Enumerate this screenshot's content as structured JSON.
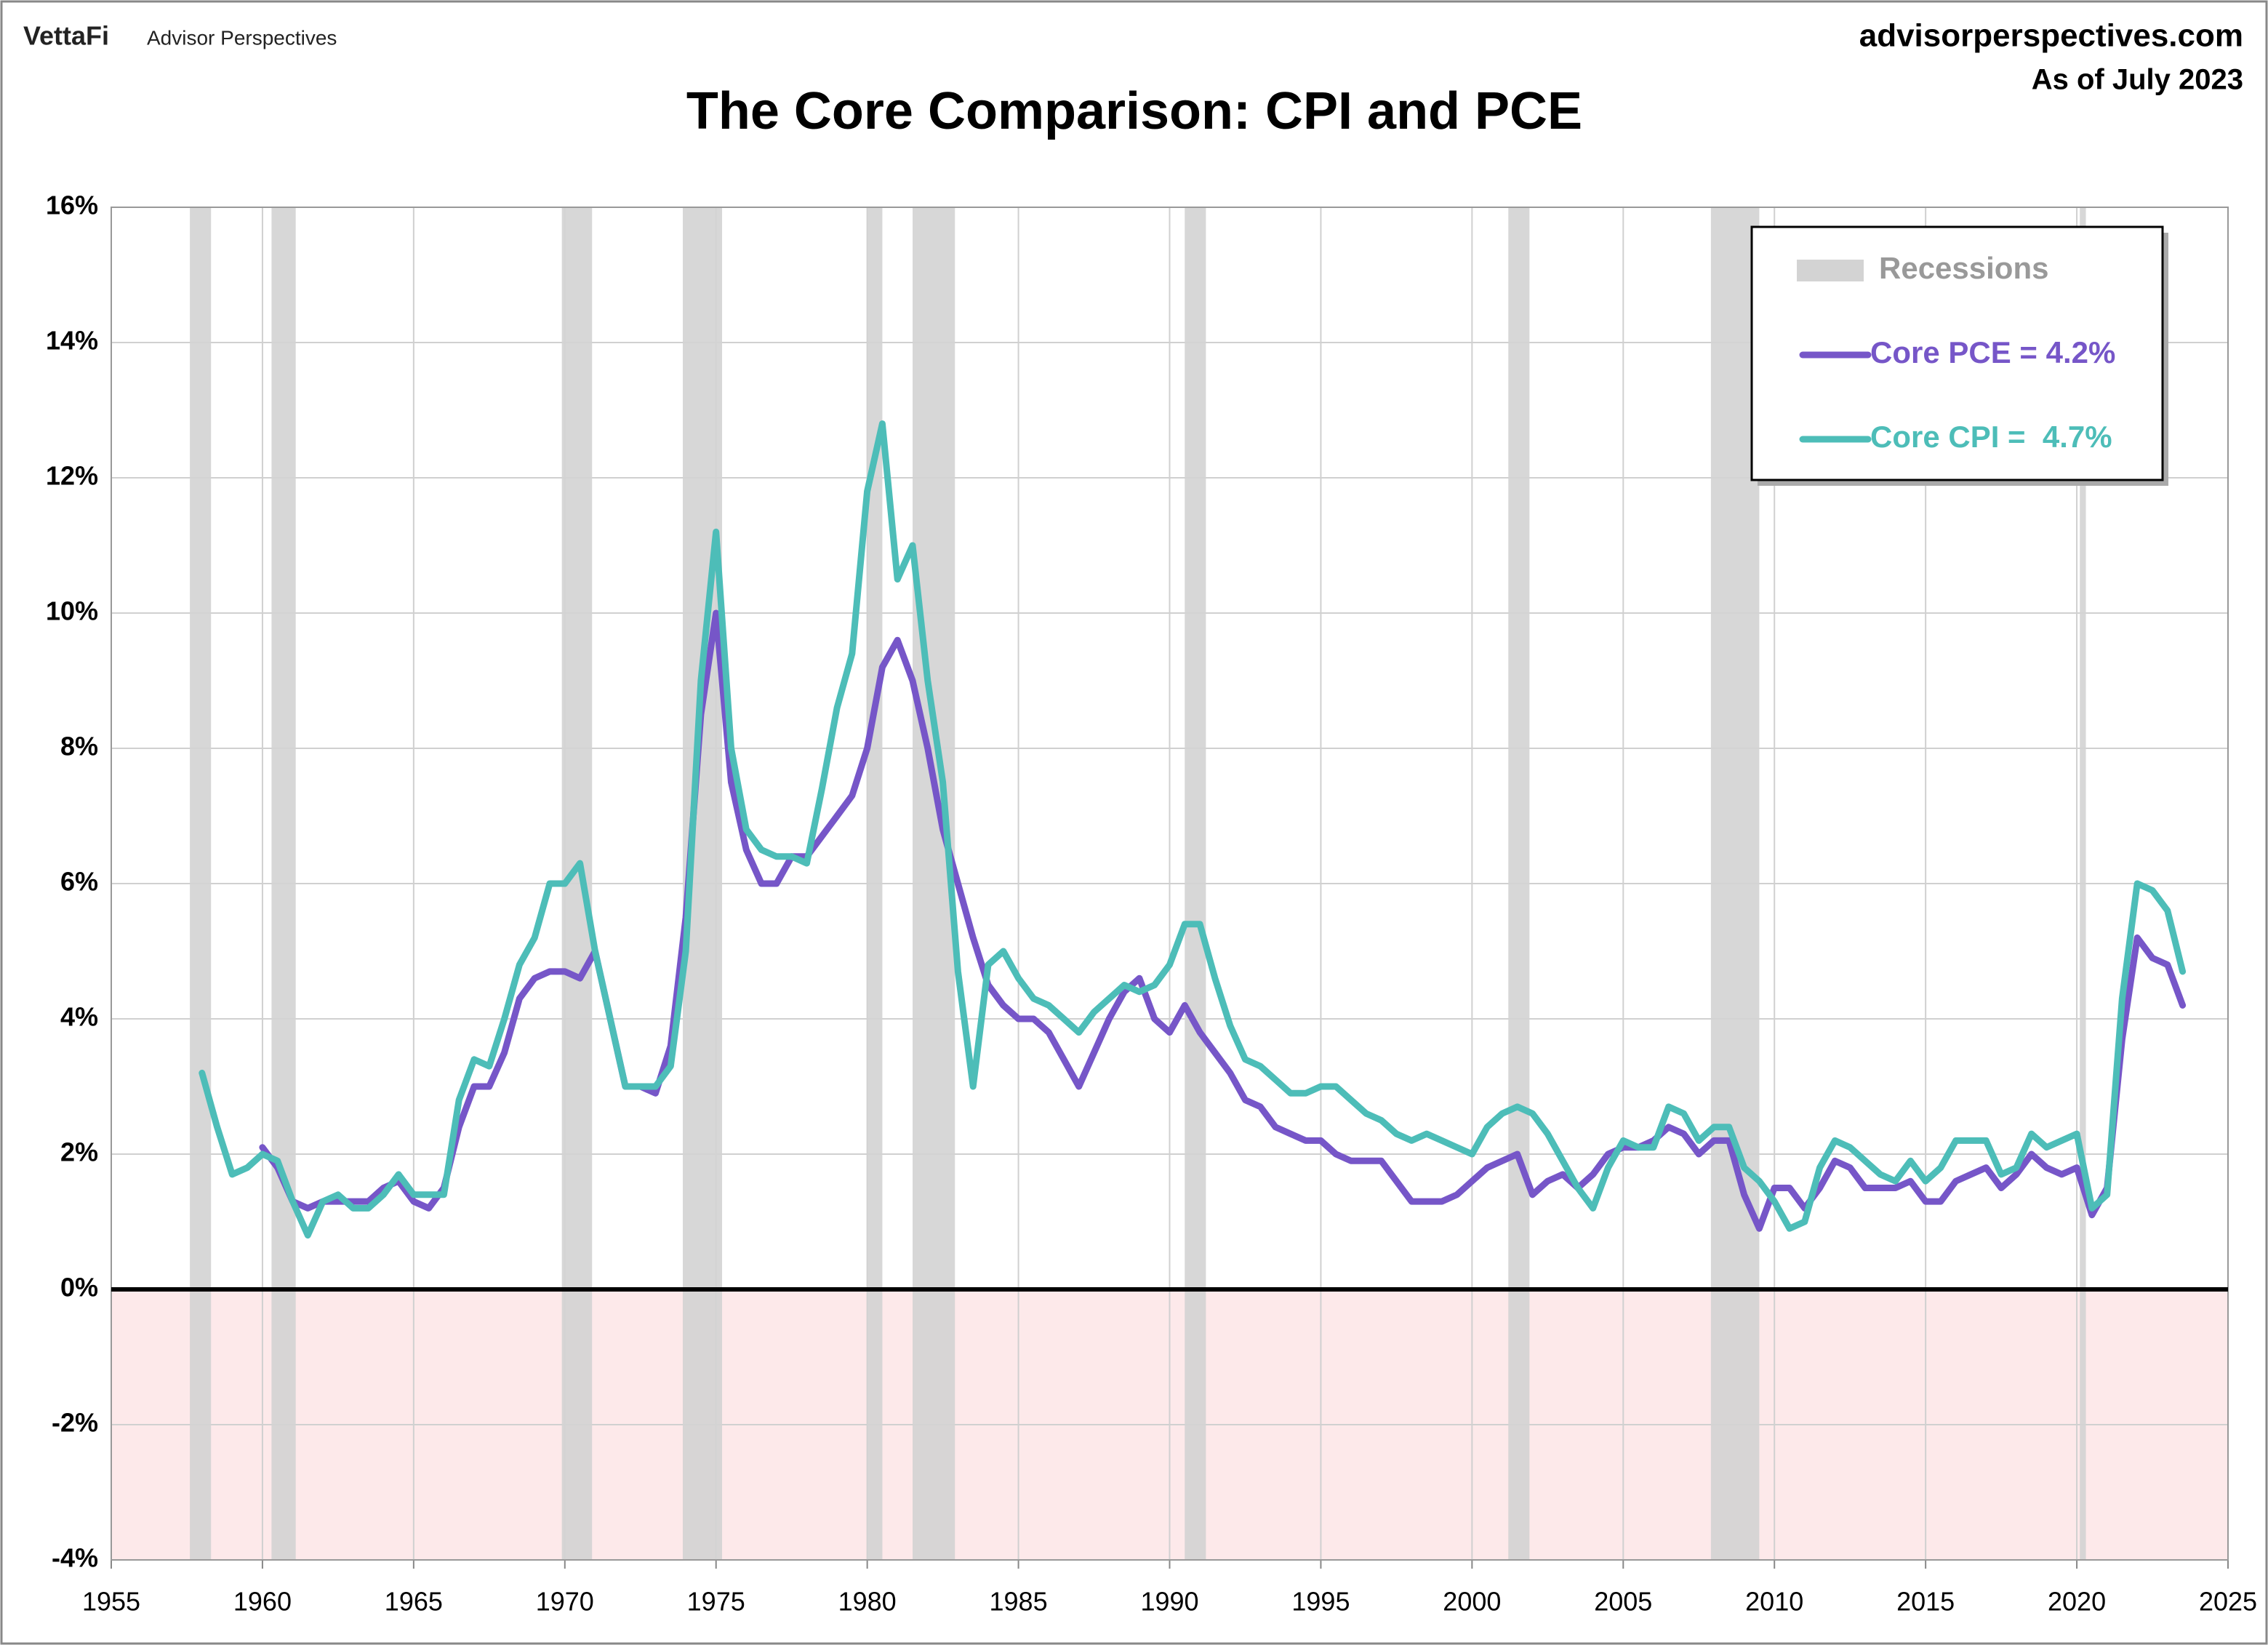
{
  "chart_data": {
    "type": "line",
    "brand": "VettaFi",
    "brand_sub": "Advisor Perspectives",
    "website": "advisorperspectives.com",
    "as_of": "As of July 2023",
    "title": "The Core Comparison: CPI and PCE",
    "xlim": [
      1955,
      2025
    ],
    "xticks": [
      1955,
      1960,
      1965,
      1970,
      1975,
      1980,
      1985,
      1990,
      1995,
      2000,
      2005,
      2010,
      2015,
      2020,
      2025
    ],
    "ylim": [
      -4,
      16
    ],
    "yticks": [
      {
        "value": -4,
        "label": "-4%"
      },
      {
        "value": -2,
        "label": "-2%"
      },
      {
        "value": 0,
        "label": "0%"
      },
      {
        "value": 2,
        "label": "2%"
      },
      {
        "value": 4,
        "label": "4%"
      },
      {
        "value": 6,
        "label": "6%"
      },
      {
        "value": 8,
        "label": "8%"
      },
      {
        "value": 10,
        "label": "10%"
      },
      {
        "value": 12,
        "label": "12%"
      },
      {
        "value": 14,
        "label": "14%"
      },
      {
        "value": 16,
        "label": "16%"
      }
    ],
    "grid": true,
    "negative_shade_color": "#fde9ea",
    "legend": "upper right",
    "recessions": {
      "name": "Recessions",
      "color": "#d3d3d3",
      "periods": [
        [
          1957.6,
          1958.3
        ],
        [
          1960.3,
          1961.1
        ],
        [
          1969.9,
          1970.9
        ],
        [
          1973.9,
          1975.2
        ],
        [
          1980.0,
          1980.5
        ],
        [
          1981.5,
          1982.9
        ],
        [
          1990.5,
          1991.2
        ],
        [
          2001.2,
          2001.9
        ],
        [
          2007.9,
          2009.5
        ],
        [
          2020.1,
          2020.3
        ]
      ]
    },
    "x": [
      1958.0,
      1958.5,
      1959.0,
      1959.5,
      1960.0,
      1960.5,
      1961.0,
      1961.5,
      1962.0,
      1962.5,
      1963.0,
      1963.5,
      1964.0,
      1964.5,
      1965.0,
      1965.5,
      1966.0,
      1966.5,
      1967.0,
      1967.5,
      1968.0,
      1968.5,
      1969.0,
      1969.5,
      1970.0,
      1970.5,
      1971.0,
      1971.5,
      1972.0,
      1972.5,
      1973.0,
      1973.5,
      1974.0,
      1974.5,
      1975.0,
      1975.5,
      1976.0,
      1976.5,
      1977.0,
      1977.5,
      1978.0,
      1978.5,
      1979.0,
      1979.5,
      1980.0,
      1980.5,
      1981.0,
      1981.5,
      1982.0,
      1982.5,
      1983.0,
      1983.5,
      1984.0,
      1984.5,
      1985.0,
      1985.5,
      1986.0,
      1986.5,
      1987.0,
      1987.5,
      1988.0,
      1988.5,
      1989.0,
      1989.5,
      1990.0,
      1990.5,
      1991.0,
      1991.5,
      1992.0,
      1992.5,
      1993.0,
      1993.5,
      1994.0,
      1994.5,
      1995.0,
      1995.5,
      1996.0,
      1996.5,
      1997.0,
      1997.5,
      1998.0,
      1998.5,
      1999.0,
      1999.5,
      2000.0,
      2000.5,
      2001.0,
      2001.5,
      2002.0,
      2002.5,
      2003.0,
      2003.5,
      2004.0,
      2004.5,
      2005.0,
      2005.5,
      2006.0,
      2006.5,
      2007.0,
      2007.5,
      2008.0,
      2008.5,
      2009.0,
      2009.5,
      2010.0,
      2010.5,
      2011.0,
      2011.5,
      2012.0,
      2012.5,
      2013.0,
      2013.5,
      2014.0,
      2014.5,
      2015.0,
      2015.5,
      2016.0,
      2016.5,
      2017.0,
      2017.5,
      2018.0,
      2018.5,
      2019.0,
      2019.5,
      2020.0,
      2020.5,
      2021.0,
      2021.5,
      2022.0,
      2022.5,
      2023.0,
      2023.5
    ],
    "series": [
      {
        "name": "Core PCE = 4.2%",
        "color": "#7656c8",
        "values": [
          null,
          null,
          null,
          null,
          2.1,
          1.8,
          1.3,
          1.2,
          1.3,
          1.3,
          1.3,
          1.3,
          1.5,
          1.6,
          1.3,
          1.2,
          1.5,
          2.4,
          3.0,
          3.0,
          3.5,
          4.3,
          4.6,
          4.7,
          4.7,
          4.6,
          5.0,
          4.0,
          3.0,
          3.0,
          2.9,
          3.6,
          5.5,
          8.5,
          10.0,
          7.5,
          6.5,
          6.0,
          6.0,
          6.4,
          6.4,
          6.7,
          7.0,
          7.3,
          8.0,
          9.2,
          9.6,
          9.0,
          8.0,
          6.8,
          6.0,
          5.2,
          4.5,
          4.2,
          4.0,
          4.0,
          3.8,
          3.4,
          3.0,
          3.5,
          4.0,
          4.4,
          4.6,
          4.0,
          3.8,
          4.2,
          3.8,
          3.5,
          3.2,
          2.8,
          2.7,
          2.4,
          2.3,
          2.2,
          2.2,
          2.0,
          1.9,
          1.9,
          1.9,
          1.6,
          1.3,
          1.3,
          1.3,
          1.4,
          1.6,
          1.8,
          1.9,
          2.0,
          1.4,
          1.6,
          1.7,
          1.5,
          1.7,
          2.0,
          2.1,
          2.1,
          2.2,
          2.4,
          2.3,
          2.0,
          2.2,
          2.2,
          1.4,
          0.9,
          1.5,
          1.5,
          1.2,
          1.5,
          1.9,
          1.8,
          1.5,
          1.5,
          1.5,
          1.6,
          1.3,
          1.3,
          1.6,
          1.7,
          1.8,
          1.5,
          1.7,
          2.0,
          1.8,
          1.7,
          1.8,
          1.1,
          1.5,
          3.7,
          5.2,
          4.9,
          4.8,
          4.2
        ]
      },
      {
        "name": "Core CPI =  4.7%",
        "color": "#4dbdb8",
        "values": [
          3.2,
          2.4,
          1.7,
          1.8,
          2.0,
          1.9,
          1.3,
          0.8,
          1.3,
          1.4,
          1.2,
          1.2,
          1.4,
          1.7,
          1.4,
          1.4,
          1.4,
          2.8,
          3.4,
          3.3,
          4.0,
          4.8,
          5.2,
          6.0,
          6.0,
          6.3,
          5.0,
          4.0,
          3.0,
          3.0,
          3.0,
          3.3,
          5.0,
          9.0,
          11.2,
          8.0,
          6.8,
          6.5,
          6.4,
          6.4,
          6.3,
          7.4,
          8.6,
          9.4,
          11.8,
          12.8,
          10.5,
          11.0,
          9.0,
          7.5,
          4.7,
          3.0,
          4.8,
          5.0,
          4.6,
          4.3,
          4.2,
          4.0,
          3.8,
          4.1,
          4.3,
          4.5,
          4.4,
          4.5,
          4.8,
          5.4,
          5.4,
          4.6,
          3.9,
          3.4,
          3.3,
          3.1,
          2.9,
          2.9,
          3.0,
          3.0,
          2.8,
          2.6,
          2.5,
          2.3,
          2.2,
          2.3,
          2.2,
          2.1,
          2.0,
          2.4,
          2.6,
          2.7,
          2.6,
          2.3,
          1.9,
          1.5,
          1.2,
          1.8,
          2.2,
          2.1,
          2.1,
          2.7,
          2.6,
          2.2,
          2.4,
          2.4,
          1.8,
          1.6,
          1.3,
          0.9,
          1.0,
          1.8,
          2.2,
          2.1,
          1.9,
          1.7,
          1.6,
          1.9,
          1.6,
          1.8,
          2.2,
          2.2,
          2.2,
          1.7,
          1.8,
          2.3,
          2.1,
          2.2,
          2.3,
          1.2,
          1.4,
          4.3,
          6.0,
          5.9,
          5.6,
          4.7
        ]
      }
    ]
  }
}
